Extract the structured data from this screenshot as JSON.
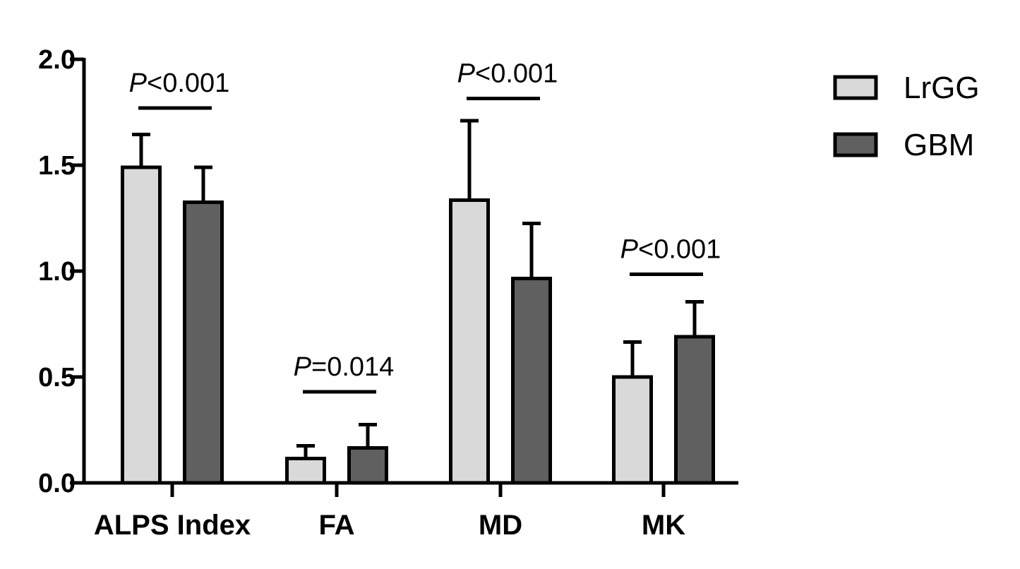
{
  "chart_data": {
    "type": "bar",
    "categories": [
      "ALPS Index",
      "FA",
      "MD",
      "MK"
    ],
    "series": [
      {
        "name": "LrGG",
        "color": "#d9d9d9",
        "values": [
          1.49,
          0.115,
          1.335,
          0.5
        ],
        "errors": [
          0.155,
          0.06,
          0.375,
          0.165
        ]
      },
      {
        "name": "GBM",
        "color": "#606060",
        "values": [
          1.325,
          0.165,
          0.965,
          0.69
        ],
        "errors": [
          0.165,
          0.11,
          0.26,
          0.165
        ]
      }
    ],
    "ylim": [
      0,
      2.0
    ],
    "yticks": [
      "0.0",
      "0.5",
      "1.0",
      "1.5",
      "2.0"
    ],
    "ytick_values": [
      0,
      0.5,
      1.0,
      1.5,
      2.0
    ],
    "annotations": [
      {
        "category": "ALPS Index",
        "p_italic": "P",
        "p_rest": "<0.001",
        "y": 1.77
      },
      {
        "category": "FA",
        "p_italic": "P",
        "p_rest": "=0.014",
        "y": 0.43
      },
      {
        "category": "MD",
        "p_italic": "P",
        "p_rest": "<0.001",
        "y": 1.815
      },
      {
        "category": "MK",
        "p_italic": "P",
        "p_rest": "<0.001",
        "y": 0.985
      }
    ],
    "legend_position": "top-right",
    "grid": false
  }
}
